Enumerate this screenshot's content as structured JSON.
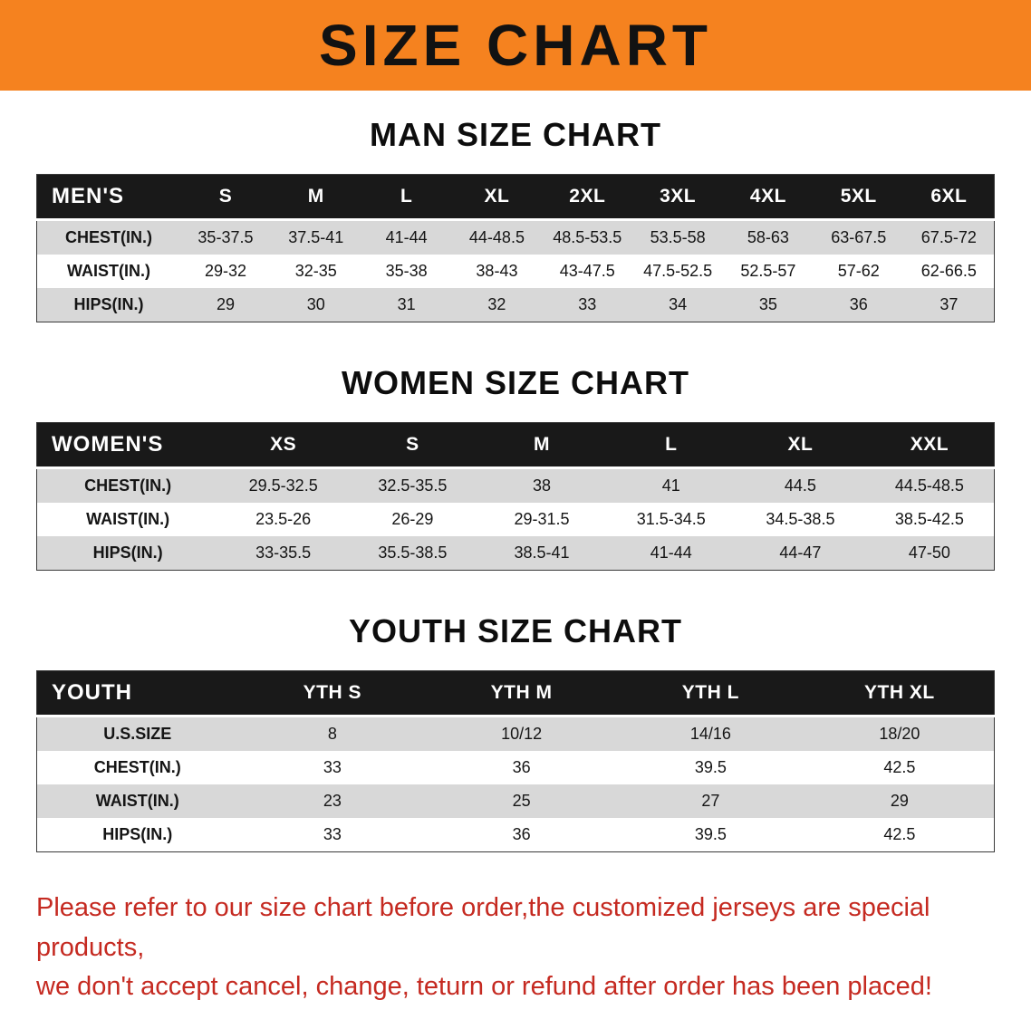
{
  "banner": {
    "title": "SIZE CHART"
  },
  "theme": {
    "banner_bg": "#F5821F",
    "title_color": "#121212",
    "header_bg": "#191919",
    "header_text": "#FFFFFF",
    "row_alt_bg": "#D8D8D8",
    "note_color": "#C52A21"
  },
  "sections": [
    {
      "id": "men",
      "heading": "MAN SIZE CHART",
      "header_label": "MEN'S",
      "columns": [
        "S",
        "M",
        "L",
        "XL",
        "2XL",
        "3XL",
        "4XL",
        "5XL",
        "6XL"
      ],
      "rows": [
        {
          "label": "CHEST(IN.)",
          "values": [
            "35-37.5",
            "37.5-41",
            "41-44",
            "44-48.5",
            "48.5-53.5",
            "53.5-58",
            "58-63",
            "63-67.5",
            "67.5-72"
          ]
        },
        {
          "label": "WAIST(IN.)",
          "values": [
            "29-32",
            "32-35",
            "35-38",
            "38-43",
            "43-47.5",
            "47.5-52.5",
            "52.5-57",
            "57-62",
            "62-66.5"
          ]
        },
        {
          "label": "HIPS(IN.)",
          "values": [
            "29",
            "30",
            "31",
            "32",
            "33",
            "34",
            "35",
            "36",
            "37"
          ]
        }
      ]
    },
    {
      "id": "women",
      "heading": "WOMEN SIZE CHART",
      "header_label": "WOMEN'S",
      "columns": [
        "XS",
        "S",
        "M",
        "L",
        "XL",
        "XXL"
      ],
      "rows": [
        {
          "label": "CHEST(IN.)",
          "values": [
            "29.5-32.5",
            "32.5-35.5",
            "38",
            "41",
            "44.5",
            "44.5-48.5"
          ]
        },
        {
          "label": "WAIST(IN.)",
          "values": [
            "23.5-26",
            "26-29",
            "29-31.5",
            "31.5-34.5",
            "34.5-38.5",
            "38.5-42.5"
          ]
        },
        {
          "label": "HIPS(IN.)",
          "values": [
            "33-35.5",
            "35.5-38.5",
            "38.5-41",
            "41-44",
            "44-47",
            "47-50"
          ]
        }
      ]
    },
    {
      "id": "youth",
      "heading": "YOUTH SIZE CHART",
      "header_label": "YOUTH",
      "columns": [
        "YTH S",
        "YTH M",
        "YTH L",
        "YTH XL"
      ],
      "rows": [
        {
          "label": "U.S.SIZE",
          "values": [
            "8",
            "10/12",
            "14/16",
            "18/20"
          ]
        },
        {
          "label": "CHEST(IN.)",
          "values": [
            "33",
            "36",
            "39.5",
            "42.5"
          ]
        },
        {
          "label": "WAIST(IN.)",
          "values": [
            "23",
            "25",
            "27",
            "29"
          ]
        },
        {
          "label": "HIPS(IN.)",
          "values": [
            "33",
            "36",
            "39.5",
            "42.5"
          ]
        }
      ]
    }
  ],
  "footer_note": {
    "line1": "Please refer to our size chart before order,the customized jerseys are special products,",
    "line2": "we don't accept cancel, change, teturn or refund after order has been placed!"
  }
}
